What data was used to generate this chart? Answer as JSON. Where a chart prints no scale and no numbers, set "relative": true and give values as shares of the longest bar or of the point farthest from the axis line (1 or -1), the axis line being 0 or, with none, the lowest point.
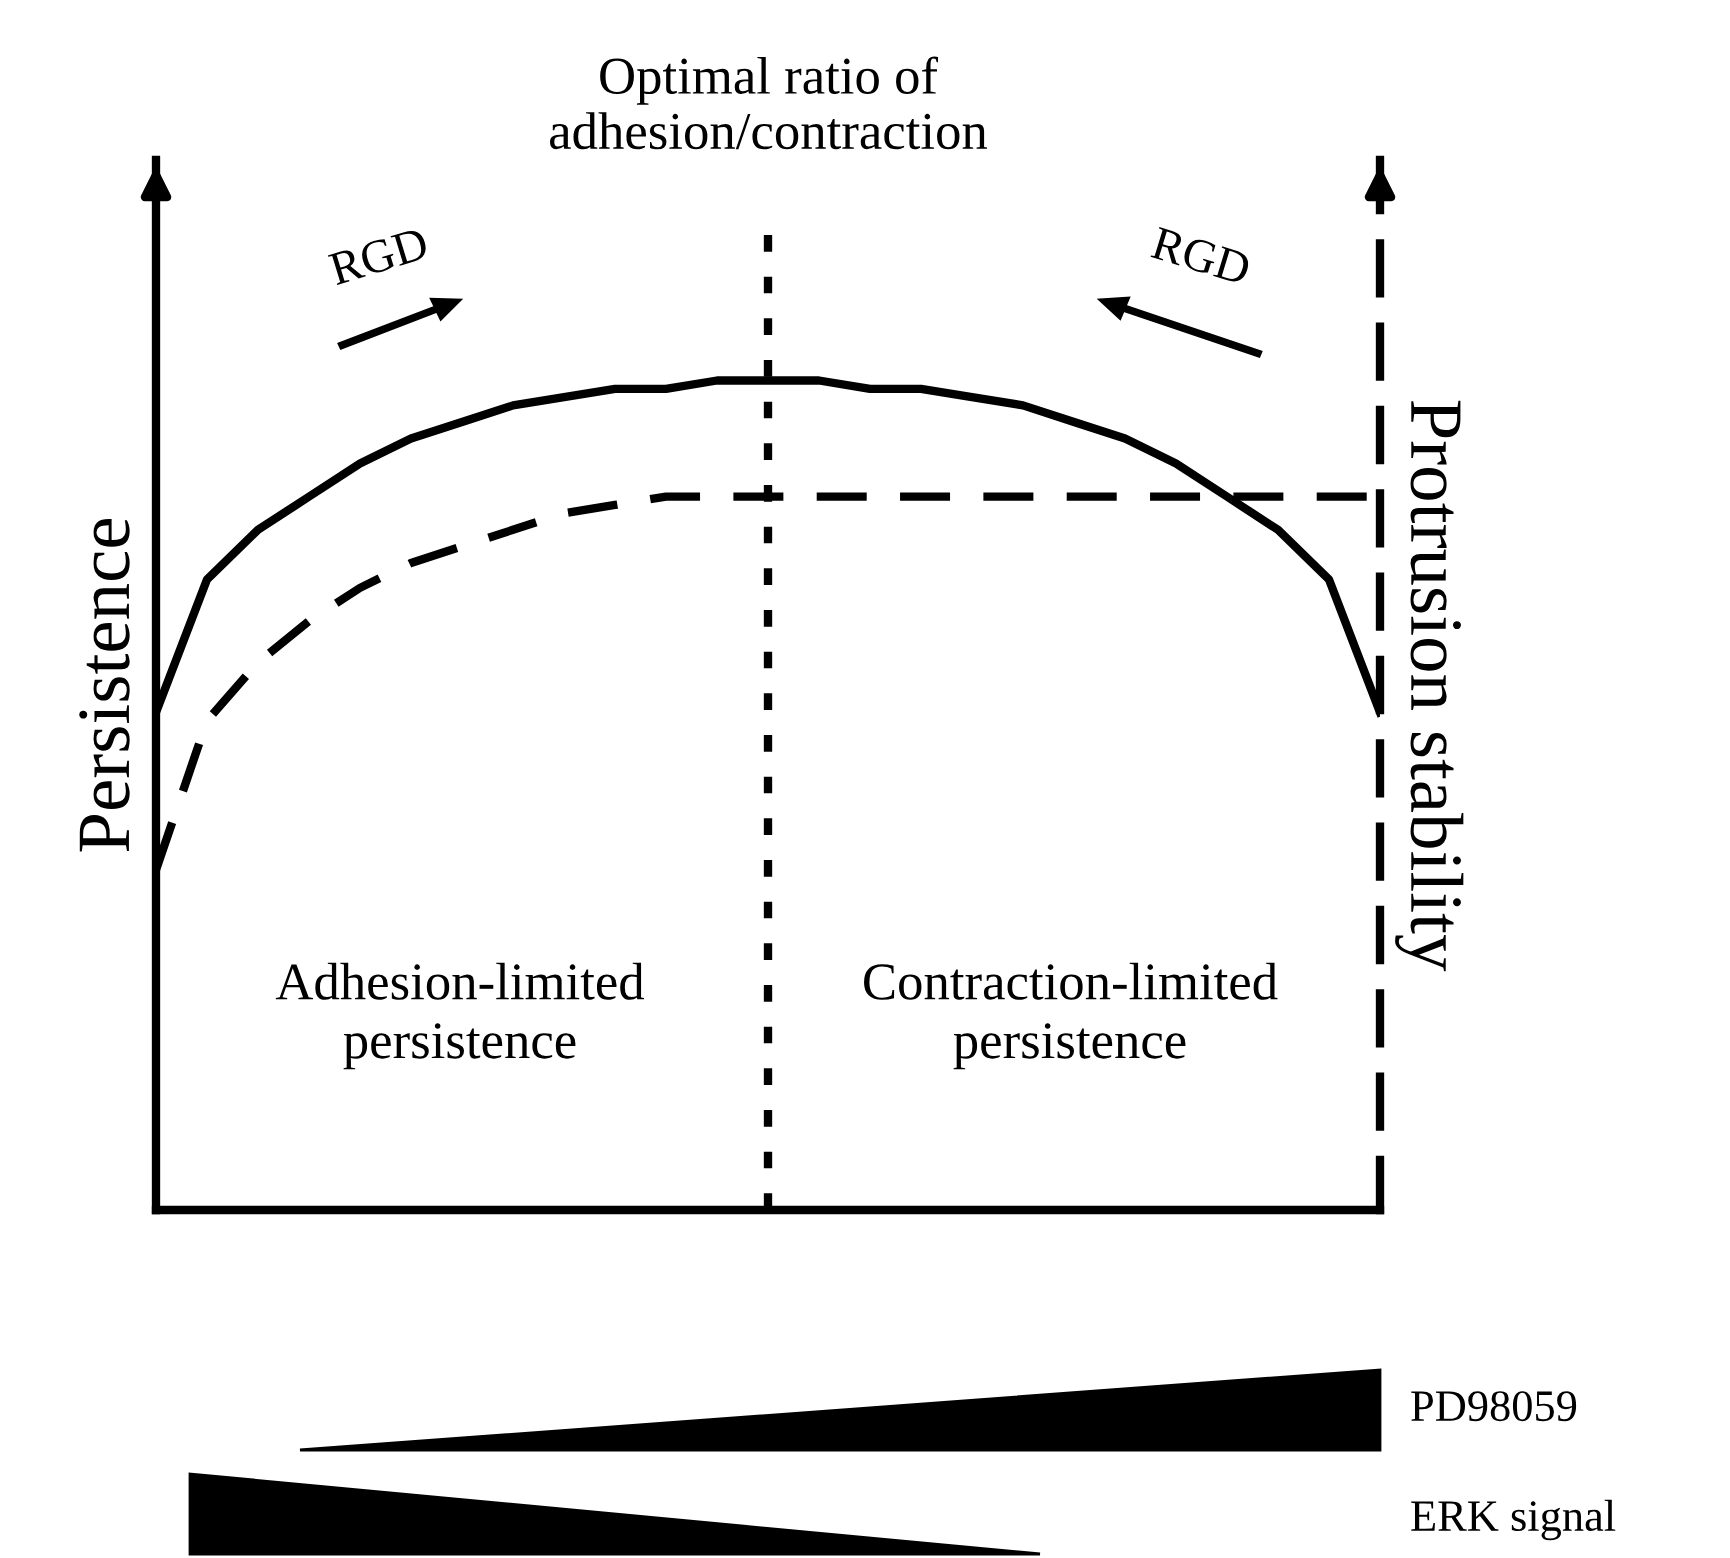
{
  "chart_data": {
    "type": "line",
    "relative": true,
    "ylabel": "Persistence",
    "y2label": "Protrusion stability",
    "categories": [
      null,
      null,
      null,
      null,
      null,
      null,
      null,
      null,
      null,
      null,
      null,
      null,
      null,
      null,
      null,
      null,
      null,
      null,
      null,
      null,
      null,
      null,
      null,
      null,
      null
    ],
    "series": [
      {
        "color": "#000000",
        "line_style": "solid",
        "values": [
          0.6,
          0.76,
          0.82,
          0.86,
          0.9,
          0.93,
          0.95,
          0.97,
          0.98,
          0.99,
          0.99,
          1.0,
          1.0,
          1.0,
          0.99,
          0.99,
          0.98,
          0.97,
          0.95,
          0.93,
          0.9,
          0.86,
          0.82,
          0.76,
          0.6
        ]
      },
      {
        "color": "#000000",
        "line_style": "dashed",
        "values": [
          0.41,
          0.59,
          0.66,
          0.71,
          0.75,
          0.78,
          0.8,
          0.82,
          0.84,
          0.85,
          0.86,
          0.86,
          0.86,
          0.86,
          0.86,
          0.86,
          0.86,
          0.86,
          0.86,
          0.86,
          0.86,
          0.86,
          0.86,
          0.86,
          0.86
        ]
      }
    ],
    "annotations": [
      "RGD",
      "RGD",
      "Adhesion-limited\npersistence",
      "Contraction-limited\npersistence",
      "PD98059",
      "ERK signal",
      "Optimal ratio of\nadhesion/contraction"
    ],
    "marker": "none"
  }
}
